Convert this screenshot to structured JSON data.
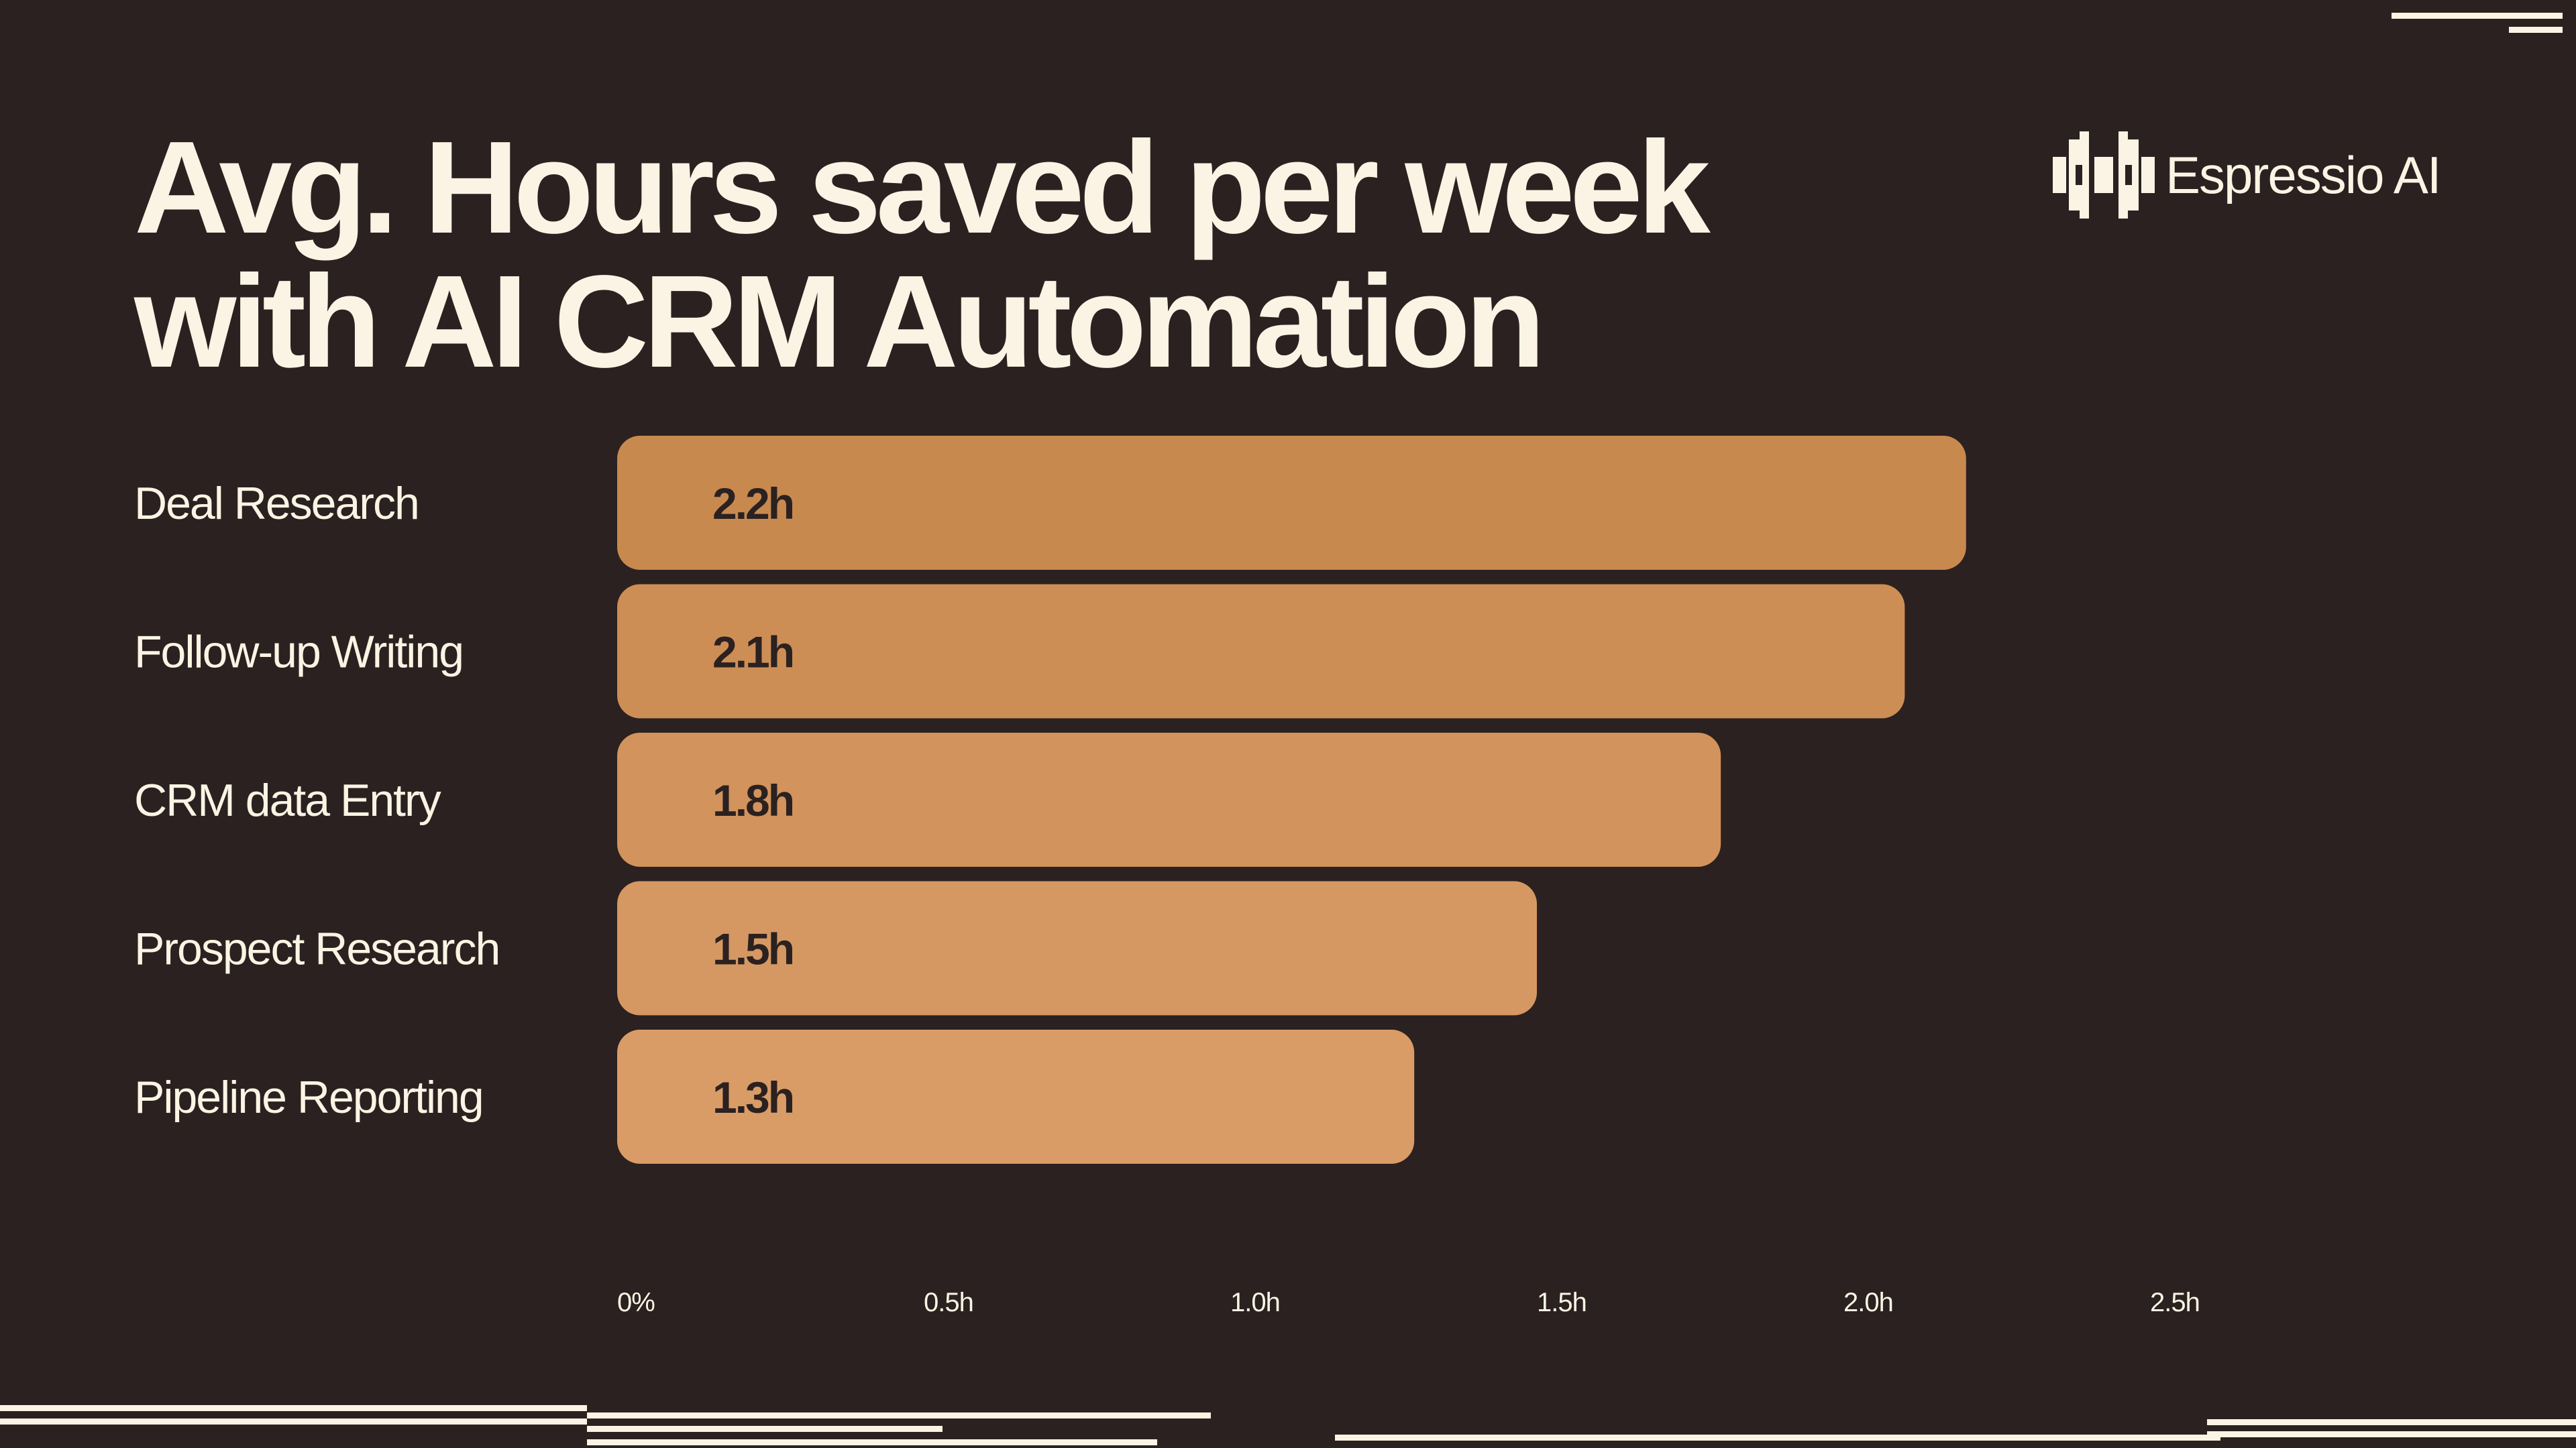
{
  "colors": {
    "background": "#2b2120",
    "text": "#fbf4e4",
    "bar_label_text": "#2b2120",
    "bars": [
      "#c8894f",
      "#cd8e56",
      "#d2935c",
      "#d69862",
      "#da9c66"
    ]
  },
  "brand": {
    "name": "Espressio AI",
    "logo_icon": "espressio-logo-icon"
  },
  "chart_data": {
    "type": "bar",
    "orientation": "horizontal",
    "title": "Avg. Hours saved per week with AI CRM Automation",
    "categories": [
      "Deal Research",
      "Follow-up Writing",
      "CRM data Entry",
      "Prospect Research",
      "Pipeline Reporting"
    ],
    "values": [
      2.2,
      2.1,
      1.8,
      1.5,
      1.3
    ],
    "value_labels": [
      "2.2h",
      "2.1h",
      "1.8h",
      "1.5h",
      "1.3h"
    ],
    "x_ticks": [
      0,
      0.5,
      1.0,
      1.5,
      2.0,
      2.5
    ],
    "x_tick_labels": [
      "0%",
      "0.5h",
      "1.0h",
      "1.5h",
      "2.0h",
      "2.5h"
    ],
    "xlim": [
      0,
      2.5
    ],
    "xlabel": "",
    "ylabel": "",
    "grid": false,
    "legend": "none"
  }
}
